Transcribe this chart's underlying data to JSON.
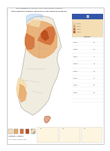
{
  "bg_color": "#f5f5f0",
  "map_bg": "#ddeeff",
  "title_line1": "Untersuchungsgebiete (Gebiete für einen CO₂-Speicherungsbetrieb und Gebiete mit",
  "title_line2": "HYDROTHERMALES POTENTIAL (VERGLEICH MIT DER LITERATUR-RECHERCHE)",
  "scale": "1 : 1.000.000",
  "right_panel_color": "#f9f0e0",
  "right_panel_border": "#cccccc",
  "legend_colors": [
    "#f5deb3",
    "#e8a96a",
    "#d4703a",
    "#b84c1a"
  ],
  "legend_labels": [
    "Geringer Potential",
    "Mittlerer Potential",
    "Hoher Potential",
    "Sehr hoher Potential"
  ],
  "north_color": "#cc2200",
  "map_outline": "#888888",
  "bottom_panel_color": "#fdf5e0",
  "header_blue": "#3355aa",
  "map_region_colors": {
    "north_light": "#f5deb3",
    "north_medium": "#e8a96a",
    "north_dark": "#d4703a",
    "north_darkest": "#b84c1a",
    "sw_light": "#f5deb3",
    "sw_medium": "#e8a96a"
  },
  "corner_icon_color": "#4488cc",
  "frame_color": "#aaaaaa",
  "overall_bg": "#ffffff"
}
